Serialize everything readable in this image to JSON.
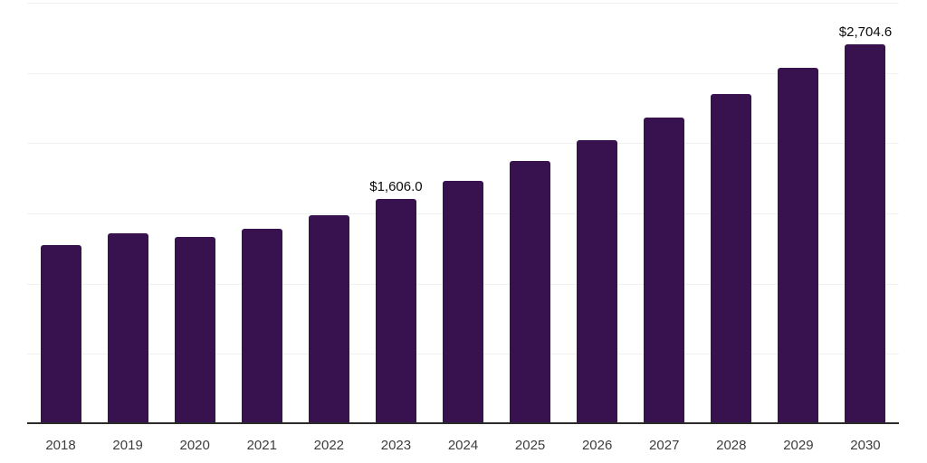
{
  "chart_data": {
    "type": "bar",
    "title": "",
    "xlabel": "",
    "ylabel": "",
    "categories": [
      "2018",
      "2019",
      "2020",
      "2021",
      "2022",
      "2023",
      "2024",
      "2025",
      "2026",
      "2027",
      "2028",
      "2029",
      "2030"
    ],
    "values": [
      1275,
      1360,
      1330,
      1390,
      1485,
      1606.0,
      1735,
      1875,
      2020,
      2180,
      2350,
      2535,
      2704.6
    ],
    "annotations": [
      {
        "category": "2023",
        "text": "$1,606.0"
      },
      {
        "category": "2030",
        "text": "$2,704.6"
      }
    ],
    "ylim": [
      0,
      3000
    ],
    "gridline_values": [
      3000,
      2500,
      2000,
      1500,
      1000,
      500
    ],
    "y_axis_labels_visible": false,
    "legend": "none",
    "colors": {
      "bar": "#38124e",
      "gridline": "#f1f1f1",
      "axis_line": "#2b2b2b",
      "tick_label": "#3d3d3d",
      "value_label": "#0a0a0a",
      "background": "#ffffff"
    }
  }
}
